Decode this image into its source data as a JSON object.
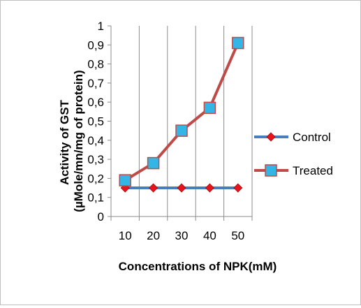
{
  "chart_data": {
    "type": "line",
    "title": "",
    "xlabel": "Concentrations of NPK(mM)",
    "ylabel_line1": "Activity of GST",
    "ylabel_line2": "(µMole/mn/mg of protein)",
    "categories": [
      "10",
      "20",
      "30",
      "40",
      "50"
    ],
    "ylim": [
      0,
      1
    ],
    "yticks": [
      "0",
      "0,1",
      "0,2",
      "0,3",
      "0,4",
      "0,5",
      "0,6",
      "0,7",
      "0,8",
      "0,9",
      "1"
    ],
    "grid": "vertical",
    "legend_position": "right",
    "series": [
      {
        "name": "Control",
        "values": [
          0.15,
          0.15,
          0.15,
          0.15,
          0.15
        ],
        "line_color": "#4a7ebb",
        "marker": "diamond",
        "marker_color": "#e8141b"
      },
      {
        "name": "Treated",
        "values": [
          0.19,
          0.28,
          0.45,
          0.57,
          0.91
        ],
        "line_color": "#be4b48",
        "marker": "square",
        "marker_color": "#33b5e5"
      }
    ]
  }
}
